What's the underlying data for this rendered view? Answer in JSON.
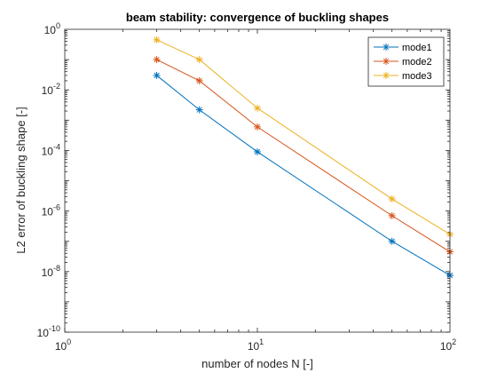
{
  "chart_data": {
    "type": "line",
    "title": "beam stability: convergence of buckling shapes",
    "xlabel": "number of nodes N [-]",
    "ylabel": "L2 error of buckling shape [-]",
    "xscale": "log",
    "yscale": "log",
    "xlim": [
      1,
      100
    ],
    "ylim": [
      1e-10,
      1
    ],
    "x_ticks": [
      {
        "value": 1,
        "base": "10",
        "exp": "0"
      },
      {
        "value": 10,
        "base": "10",
        "exp": "1"
      },
      {
        "value": 100,
        "base": "10",
        "exp": "2"
      }
    ],
    "y_ticks": [
      {
        "value": 1e-10,
        "base": "10",
        "exp": "-10"
      },
      {
        "value": 1e-08,
        "base": "10",
        "exp": "-8"
      },
      {
        "value": 1e-06,
        "base": "10",
        "exp": "-6"
      },
      {
        "value": 0.0001,
        "base": "10",
        "exp": "-4"
      },
      {
        "value": 0.01,
        "base": "10",
        "exp": "-2"
      },
      {
        "value": 1,
        "base": "10",
        "exp": "0"
      }
    ],
    "x": [
      3,
      5,
      10,
      50,
      100
    ],
    "series": [
      {
        "name": "mode1",
        "color": "#0072BD",
        "values": [
          0.03,
          0.0022,
          9e-05,
          1e-07,
          7.5e-09
        ]
      },
      {
        "name": "mode2",
        "color": "#D95319",
        "values": [
          0.1,
          0.02,
          0.0006,
          7e-07,
          4.5e-08
        ]
      },
      {
        "name": "mode3",
        "color": "#EDB120",
        "values": [
          0.45,
          0.1,
          0.0025,
          2.5e-06,
          1.7e-07
        ]
      }
    ],
    "marker": "asterisk",
    "grid": false,
    "legend_position": "top-right"
  }
}
